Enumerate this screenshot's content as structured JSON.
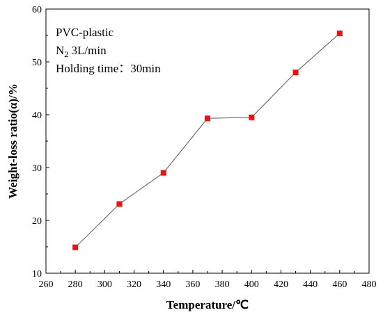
{
  "chart_data": {
    "type": "scatter",
    "title": "",
    "xlabel": "Temperature/℃",
    "ylabel": "Weight-loss ratio(α)/%",
    "xlim": [
      260,
      480
    ],
    "ylim": [
      10,
      60
    ],
    "x_ticks": [
      260,
      280,
      300,
      320,
      340,
      360,
      380,
      400,
      420,
      440,
      460,
      480
    ],
    "y_ticks": [
      10,
      20,
      30,
      40,
      50,
      60
    ],
    "grid": false,
    "connected": true,
    "marker": "square",
    "marker_color": "#ee1111",
    "line_color": "#555555",
    "annotations": {
      "line1": "PVC-plastic",
      "line2_main": "N",
      "line2_sub": "2",
      "line2_rest": " 3L/min",
      "line3": "Holding time：30min"
    },
    "series": [
      {
        "x": [
          280,
          310,
          340,
          370,
          400,
          430,
          460
        ],
        "y": [
          14.9,
          23.1,
          29.0,
          39.3,
          39.5,
          48.0,
          55.4
        ]
      }
    ]
  }
}
